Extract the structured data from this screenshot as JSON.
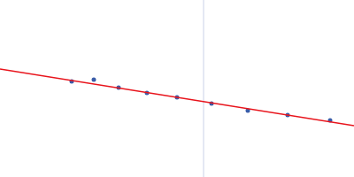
{
  "chart_data": {
    "type": "scatter",
    "series": [
      {
        "type": "scatter",
        "color": "#3a5ca8",
        "marker": "circle",
        "x": [
          81,
          106,
          134,
          166,
          200,
          239,
          280,
          325,
          373
        ],
        "values": [
          108,
          110,
          101,
          95,
          90,
          83,
          75,
          70,
          64
        ]
      },
      {
        "type": "line",
        "color": "#e8141c",
        "line_style": "solid",
        "x": [
          0,
          400
        ],
        "values": [
          122,
          58
        ]
      }
    ],
    "vline": 230,
    "xlim": [
      0,
      400
    ],
    "ylim": [
      0,
      200
    ],
    "grid": false,
    "tick_labels": false
  }
}
